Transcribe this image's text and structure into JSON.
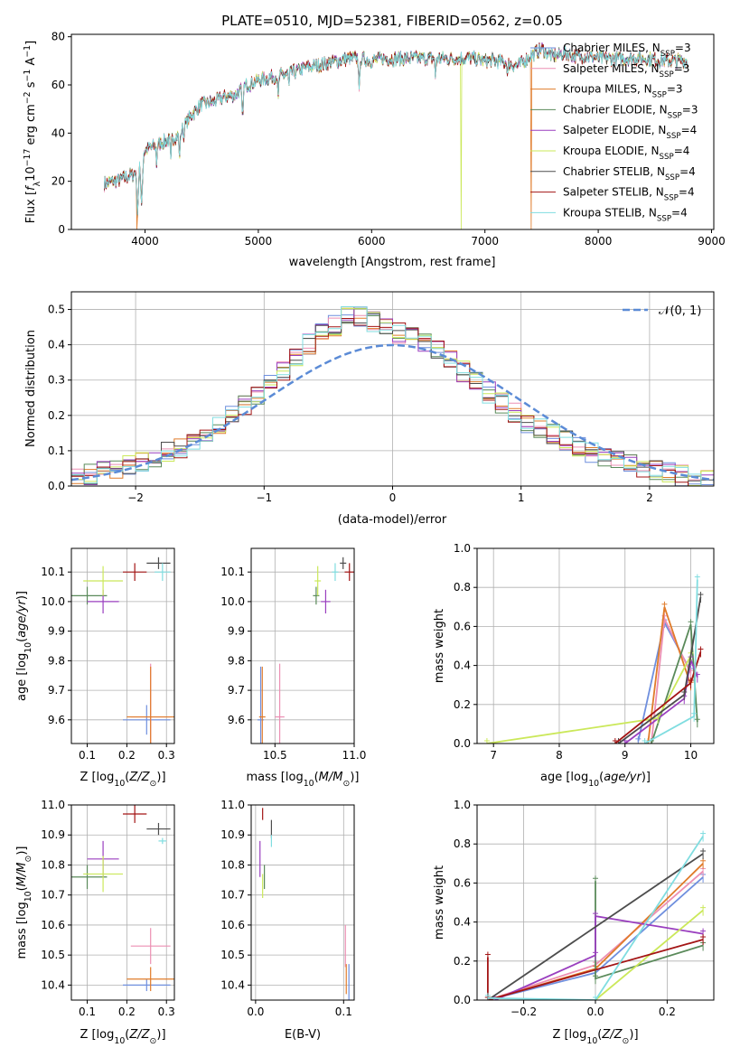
{
  "figure_title": "PLATE=0510, MJD=52381, FIBERID=0562, z=0.05",
  "colors": {
    "chabrier_miles": "#6f8fde",
    "salpeter_miles": "#ec8fb3",
    "kroupa_miles": "#e07b2a",
    "chabrier_elodie": "#5a8a5a",
    "salpeter_elodie": "#9a3fbf",
    "kroupa_elodie": "#cbe85a",
    "chabrier_stelib": "#4d4d4d",
    "salpeter_stelib": "#a31515",
    "kroupa_stelib": "#80dde0",
    "gaussian": "#5b8bd6"
  },
  "series_names": [
    "Chabrier MILES, N_SSP=3",
    "Salpeter MILES, N_SSP=3",
    "Kroupa MILES, N_SSP=3",
    "Chabrier ELODIE, N_SSP=3",
    "Salpeter ELODIE, N_SSP=4",
    "Kroupa ELODIE, N_SSP=4",
    "Chabrier STELIB, N_SSP=4",
    "Salpeter STELIB, N_SSP=4",
    "Kroupa STELIB, N_SSP=4"
  ],
  "chart_data": [
    {
      "id": "spectrum",
      "type": "line",
      "title": "PLATE=0510, MJD=52381, FIBERID=0562, z=0.05",
      "xlabel": "wavelength [Angstrom, rest frame]",
      "ylabel": "Flux [f_λ 10^-17 erg cm^-2 s^-1 A^-1]",
      "xlim": [
        3350,
        9020
      ],
      "ylim": [
        0,
        81
      ],
      "xticks": [
        4000,
        5000,
        6000,
        7000,
        8000,
        9000
      ],
      "yticks": [
        0,
        20,
        40,
        60,
        80
      ],
      "legend_position": "right",
      "continuum": [
        [
          3640,
          19
        ],
        [
          3800,
          21
        ],
        [
          3900,
          23
        ],
        [
          3960,
          27
        ],
        [
          4000,
          33
        ],
        [
          4100,
          35
        ],
        [
          4200,
          37
        ],
        [
          4300,
          39
        ],
        [
          4400,
          47
        ],
        [
          4500,
          52
        ],
        [
          4600,
          53
        ],
        [
          4700,
          55
        ],
        [
          4800,
          56
        ],
        [
          4900,
          60
        ],
        [
          5000,
          62
        ],
        [
          5100,
          63
        ],
        [
          5200,
          64
        ],
        [
          5300,
          65
        ],
        [
          5400,
          67
        ],
        [
          5500,
          68
        ],
        [
          5600,
          69
        ],
        [
          5700,
          70
        ],
        [
          5800,
          71
        ],
        [
          5900,
          71
        ],
        [
          6000,
          70
        ],
        [
          6100,
          71
        ],
        [
          6200,
          71
        ],
        [
          6300,
          71
        ],
        [
          6400,
          71
        ],
        [
          6500,
          71
        ],
        [
          6600,
          71
        ],
        [
          6700,
          71
        ],
        [
          6800,
          71
        ],
        [
          6900,
          71
        ],
        [
          7000,
          70
        ],
        [
          7100,
          70
        ],
        [
          7200,
          69
        ],
        [
          7300,
          68
        ],
        [
          7400,
          72
        ],
        [
          7500,
          75
        ],
        [
          7600,
          72
        ],
        [
          7700,
          73
        ],
        [
          7800,
          72
        ],
        [
          7900,
          72
        ],
        [
          8000,
          71
        ],
        [
          8200,
          71
        ],
        [
          8400,
          71
        ],
        [
          8600,
          70
        ],
        [
          8800,
          70
        ]
      ],
      "dips": [
        [
          3934,
          6
        ],
        [
          3969,
          9
        ],
        [
          4102,
          26
        ],
        [
          4227,
          29
        ],
        [
          4304,
          28
        ],
        [
          4341,
          36
        ],
        [
          4861,
          45
        ],
        [
          5175,
          54
        ],
        [
          5270,
          58
        ],
        [
          5890,
          58
        ],
        [
          6563,
          62
        ],
        [
          7200,
          62
        ]
      ],
      "gaps": [
        {
          "wavelength": 3930,
          "series": "kroupa_miles"
        },
        {
          "wavelength": 6790,
          "series": "kroupa_elodie"
        },
        {
          "wavelength": 7410,
          "series": "kroupa_miles"
        }
      ]
    },
    {
      "id": "residuals",
      "type": "line",
      "xlabel": "(data-model)/error",
      "ylabel": "Normed distribution",
      "xlim": [
        -2.5,
        2.5
      ],
      "ylim": [
        0,
        0.55
      ],
      "xticks": [
        -2,
        -1,
        0,
        1,
        2
      ],
      "yticks": [
        0.0,
        0.1,
        0.2,
        0.3,
        0.4,
        0.5
      ],
      "grid": true,
      "legend": "𝒩(0, 1)",
      "legend_position": "top-right",
      "bin_width": 0.1,
      "histogram_envelope": [
        [
          -2.5,
          0.02
        ],
        [
          -2.0,
          0.06
        ],
        [
          -1.5,
          0.13
        ],
        [
          -1.0,
          0.27
        ],
        [
          -0.6,
          0.42
        ],
        [
          -0.3,
          0.49
        ],
        [
          0.0,
          0.44
        ],
        [
          0.3,
          0.4
        ],
        [
          0.6,
          0.31
        ],
        [
          1.0,
          0.19
        ],
        [
          1.5,
          0.1
        ],
        [
          2.0,
          0.05
        ],
        [
          2.5,
          0.01
        ]
      ]
    },
    {
      "id": "age_vs_z",
      "type": "scatter",
      "xlabel": "Z [log10(Z/Z⊙)]",
      "ylabel": "age  [log10(age/yr)]",
      "xlim": [
        0.06,
        0.32
      ],
      "ylim": [
        9.52,
        10.18
      ],
      "xticks": [
        0.1,
        0.2,
        0.3
      ],
      "yticks": [
        9.6,
        9.7,
        9.8,
        9.9,
        10.0,
        10.1
      ],
      "grid": true,
      "points": [
        {
          "series": "chabrier_miles",
          "x": 0.25,
          "y": 9.6,
          "xerr": 0.06,
          "yerr": 0.05
        },
        {
          "series": "salpeter_miles",
          "x": 0.26,
          "y": 9.61,
          "xerr": 0.05,
          "yerr": 0.18
        },
        {
          "series": "kroupa_miles",
          "x": 0.26,
          "y": 9.61,
          "xerr": 0.06,
          "yerr": 0.17
        },
        {
          "series": "chabrier_elodie",
          "x": 0.1,
          "y": 10.02,
          "xerr": 0.05,
          "yerr": 0.03
        },
        {
          "series": "salpeter_elodie",
          "x": 0.14,
          "y": 10.0,
          "xerr": 0.04,
          "yerr": 0.04
        },
        {
          "series": "kroupa_elodie",
          "x": 0.14,
          "y": 10.07,
          "xerr": 0.05,
          "yerr": 0.05
        },
        {
          "series": "chabrier_stelib",
          "x": 0.28,
          "y": 10.13,
          "xerr": 0.03,
          "yerr": 0.02
        },
        {
          "series": "salpeter_stelib",
          "x": 0.22,
          "y": 10.1,
          "xerr": 0.03,
          "yerr": 0.03
        },
        {
          "series": "kroupa_stelib",
          "x": 0.29,
          "y": 10.1,
          "xerr": 0.02,
          "yerr": 0.03
        }
      ]
    },
    {
      "id": "age_vs_mass",
      "type": "scatter",
      "xlabel": "mass [log10(M/M⊙)]",
      "ylim": [
        9.52,
        10.18
      ],
      "xlim": [
        10.35,
        11.0
      ],
      "xticks": [
        10.5,
        11.0
      ],
      "yticks": [
        9.6,
        9.7,
        9.8,
        9.9,
        10.0,
        10.1
      ],
      "grid": true,
      "points": [
        {
          "series": "chabrier_miles",
          "x": 10.41,
          "y": 9.6,
          "xerr": 0.02,
          "yerr": 0.18
        },
        {
          "series": "salpeter_miles",
          "x": 10.53,
          "y": 9.61,
          "xerr": 0.03,
          "yerr": 0.18
        },
        {
          "series": "kroupa_miles",
          "x": 10.42,
          "y": 9.61,
          "xerr": 0.02,
          "yerr": 0.17
        },
        {
          "series": "chabrier_elodie",
          "x": 10.76,
          "y": 10.02,
          "xerr": 0.02,
          "yerr": 0.03
        },
        {
          "series": "salpeter_elodie",
          "x": 10.82,
          "y": 10.0,
          "xerr": 0.03,
          "yerr": 0.04
        },
        {
          "series": "kroupa_elodie",
          "x": 10.77,
          "y": 10.07,
          "xerr": 0.02,
          "yerr": 0.05
        },
        {
          "series": "chabrier_stelib",
          "x": 10.93,
          "y": 10.13,
          "xerr": 0.02,
          "yerr": 0.02
        },
        {
          "series": "salpeter_stelib",
          "x": 10.97,
          "y": 10.1,
          "xerr": 0.03,
          "yerr": 0.03
        },
        {
          "series": "kroupa_stelib",
          "x": 10.88,
          "y": 10.1,
          "xerr": 0.02,
          "yerr": 0.03
        }
      ]
    },
    {
      "id": "weight_vs_age",
      "type": "line",
      "xlabel": "age  [log10(age/yr)]",
      "ylabel": "mass weight",
      "xlim": [
        6.75,
        10.35
      ],
      "ylim": [
        0,
        1.0
      ],
      "xticks": [
        7,
        8,
        9,
        10
      ],
      "yticks": [
        0.0,
        0.2,
        0.4,
        0.6,
        0.8,
        1.0
      ],
      "grid": true,
      "series": [
        {
          "key": "chabrier_miles",
          "points": [
            [
              9.2,
              0.01
            ],
            [
              9.6,
              0.62
            ],
            [
              10.0,
              0.37
            ]
          ]
        },
        {
          "key": "salpeter_miles",
          "points": [
            [
              9.4,
              0.0
            ],
            [
              9.6,
              0.64
            ],
            [
              10.0,
              0.36
            ]
          ]
        },
        {
          "key": "kroupa_miles",
          "points": [
            [
              9.35,
              0.0
            ],
            [
              9.6,
              0.7
            ],
            [
              10.0,
              0.3
            ]
          ]
        },
        {
          "key": "chabrier_elodie",
          "points": [
            [
              9.4,
              0.0
            ],
            [
              10.0,
              0.61
            ],
            [
              10.1,
              0.11
            ]
          ]
        },
        {
          "key": "salpeter_elodie",
          "points": [
            [
              9.0,
              0.0
            ],
            [
              9.9,
              0.23
            ],
            [
              10.0,
              0.43
            ],
            [
              10.1,
              0.34
            ]
          ]
        },
        {
          "key": "kroupa_elodie",
          "points": [
            [
              6.9,
              0.0
            ],
            [
              9.5,
              0.13
            ],
            [
              10.0,
              0.45
            ]
          ]
        },
        {
          "key": "chabrier_stelib",
          "points": [
            [
              8.9,
              0.0
            ],
            [
              9.9,
              0.25
            ],
            [
              10.15,
              0.75
            ]
          ]
        },
        {
          "key": "salpeter_stelib",
          "points": [
            [
              8.85,
              0.0
            ],
            [
              10.0,
              0.31
            ],
            [
              10.15,
              0.47
            ]
          ]
        },
        {
          "key": "kroupa_stelib",
          "points": [
            [
              9.3,
              0.0
            ],
            [
              10.05,
              0.14
            ],
            [
              10.1,
              0.84
            ]
          ]
        }
      ]
    },
    {
      "id": "mass_vs_z",
      "type": "scatter",
      "xlabel": "Z [log10(Z/Z⊙)]",
      "ylabel": "mass [log10(M/M⊙)]",
      "xlim": [
        0.06,
        0.32
      ],
      "ylim": [
        10.35,
        11.0
      ],
      "xticks": [
        0.1,
        0.2,
        0.3
      ],
      "yticks": [
        10.4,
        10.5,
        10.6,
        10.7,
        10.8,
        10.9,
        11.0
      ],
      "grid": true,
      "points": [
        {
          "series": "chabrier_miles",
          "x": 0.25,
          "y": 10.4,
          "xerr": 0.06,
          "yerr": 0.02
        },
        {
          "series": "salpeter_miles",
          "x": 0.26,
          "y": 10.53,
          "xerr": 0.05,
          "yerr": 0.06
        },
        {
          "series": "kroupa_miles",
          "x": 0.26,
          "y": 10.42,
          "xerr": 0.06,
          "yerr": 0.04
        },
        {
          "series": "chabrier_elodie",
          "x": 0.1,
          "y": 10.76,
          "xerr": 0.05,
          "yerr": 0.04
        },
        {
          "series": "salpeter_elodie",
          "x": 0.14,
          "y": 10.82,
          "xerr": 0.04,
          "yerr": 0.06
        },
        {
          "series": "kroupa_elodie",
          "x": 0.14,
          "y": 10.77,
          "xerr": 0.05,
          "yerr": 0.06
        },
        {
          "series": "chabrier_stelib",
          "x": 0.28,
          "y": 10.92,
          "xerr": 0.03,
          "yerr": 0.02
        },
        {
          "series": "salpeter_stelib",
          "x": 0.22,
          "y": 10.97,
          "xerr": 0.03,
          "yerr": 0.03
        },
        {
          "series": "kroupa_stelib",
          "x": 0.29,
          "y": 10.88,
          "xerr": 0.01,
          "yerr": 0.01
        }
      ]
    },
    {
      "id": "mass_vs_ebv",
      "type": "scatter",
      "xlabel": "E(B-V)",
      "xlim": [
        -0.005,
        0.112
      ],
      "ylim": [
        10.35,
        11.0
      ],
      "xticks": [
        0.0,
        0.1
      ],
      "yticks": [
        10.4,
        10.5,
        10.6,
        10.7,
        10.8,
        10.9,
        11.0
      ],
      "grid": true,
      "points": [
        {
          "series": "chabrier_miles",
          "x": 0.106,
          "y": 10.4,
          "xerr": 0.0,
          "yerr": 0.07
        },
        {
          "series": "salpeter_miles",
          "x": 0.102,
          "y": 10.53,
          "xerr": 0.0,
          "yerr": 0.07
        },
        {
          "series": "kroupa_miles",
          "x": 0.103,
          "y": 10.42,
          "xerr": 0.0,
          "yerr": 0.05
        },
        {
          "series": "chabrier_elodie",
          "x": 0.01,
          "y": 10.76,
          "xerr": 0.0,
          "yerr": 0.04
        },
        {
          "series": "salpeter_elodie",
          "x": 0.005,
          "y": 10.82,
          "xerr": 0.0,
          "yerr": 0.06
        },
        {
          "series": "kroupa_elodie",
          "x": 0.008,
          "y": 10.73,
          "xerr": 0.0,
          "yerr": 0.04
        },
        {
          "series": "chabrier_stelib",
          "x": 0.018,
          "y": 10.92,
          "xerr": 0.0,
          "yerr": 0.03
        },
        {
          "series": "salpeter_stelib",
          "x": 0.008,
          "y": 10.97,
          "xerr": 0.0,
          "yerr": 0.02
        },
        {
          "series": "kroupa_stelib",
          "x": 0.018,
          "y": 10.88,
          "xerr": 0.0,
          "yerr": 0.02
        }
      ]
    },
    {
      "id": "weight_vs_z",
      "type": "line",
      "xlabel": "Z [log10(Z/Z⊙)]",
      "ylabel": "mass weight",
      "xlim": [
        -0.33,
        0.33
      ],
      "ylim": [
        0,
        1.0
      ],
      "xticks": [
        -0.2,
        0.0,
        0.2
      ],
      "yticks": [
        0.0,
        0.2,
        0.4,
        0.6,
        0.8,
        1.0
      ],
      "grid": true,
      "series": [
        {
          "key": "chabrier_miles",
          "points": [
            [
              -0.3,
              0.0
            ],
            [
              0.0,
              0.14
            ],
            [
              0.3,
              0.63
            ]
          ]
        },
        {
          "key": "salpeter_miles",
          "points": [
            [
              -0.3,
              0.0
            ],
            [
              0.0,
              0.18
            ],
            [
              0.3,
              0.66
            ]
          ]
        },
        {
          "key": "kroupa_miles",
          "points": [
            [
              -0.3,
              0.0
            ],
            [
              0.0,
              0.16
            ],
            [
              0.3,
              0.7
            ]
          ]
        },
        {
          "key": "chabrier_elodie",
          "points": [
            [
              0.0,
              0.61
            ],
            [
              0.0,
              0.11
            ],
            [
              0.3,
              0.28
            ]
          ]
        },
        {
          "key": "salpeter_elodie",
          "points": [
            [
              -0.28,
              0.0
            ],
            [
              0.0,
              0.23
            ],
            [
              0.0,
              0.43
            ],
            [
              0.3,
              0.34
            ]
          ]
        },
        {
          "key": "kroupa_elodie",
          "points": [
            [
              0.0,
              0.0
            ],
            [
              0.3,
              0.46
            ]
          ]
        },
        {
          "key": "chabrier_stelib",
          "points": [
            [
              -0.3,
              0.0
            ],
            [
              0.3,
              0.75
            ]
          ]
        },
        {
          "key": "salpeter_stelib",
          "points": [
            [
              -0.3,
              0.22
            ],
            [
              -0.3,
              0.0
            ],
            [
              0.3,
              0.31
            ]
          ]
        },
        {
          "key": "kroupa_stelib",
          "points": [
            [
              -0.3,
              0.01
            ],
            [
              0.0,
              0.0
            ],
            [
              0.3,
              0.84
            ]
          ]
        }
      ]
    }
  ]
}
